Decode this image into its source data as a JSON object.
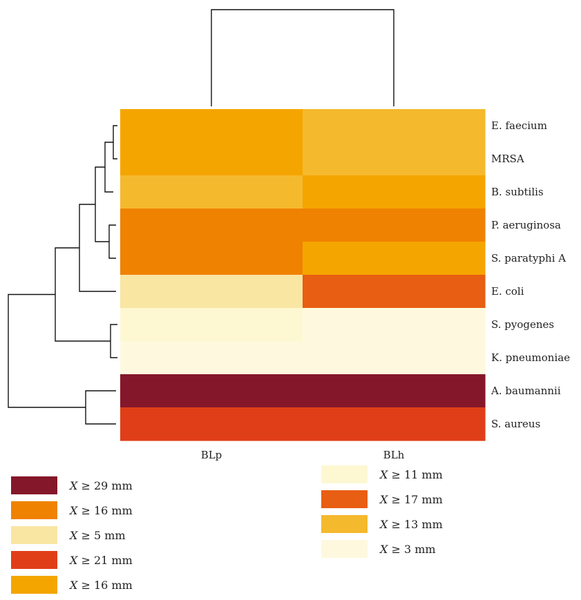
{
  "chart_data": {
    "type": "heatmap",
    "columns": [
      "BLp",
      "BLh"
    ],
    "rows": [
      "E. faecium",
      "MRSA",
      "B. subtilis",
      "P. aeruginosa",
      "S. paratyphi A",
      "E. coli",
      "S. pyogenes",
      "K. pneumoniae",
      "A. baumannii",
      "S. aureus"
    ],
    "values": [
      [
        16,
        13
      ],
      [
        16,
        13
      ],
      [
        13,
        16
      ],
      [
        16,
        16
      ],
      [
        16,
        16
      ],
      [
        5,
        17
      ],
      [
        11,
        3
      ],
      [
        3,
        3
      ],
      [
        29,
        29
      ],
      [
        21,
        21
      ]
    ],
    "cell_colors": [
      [
        "#F5A500",
        "#F5B92E"
      ],
      [
        "#F5A500",
        "#F5B92E"
      ],
      [
        "#F5B92E",
        "#F5A500"
      ],
      [
        "#EF8200",
        "#EF8200"
      ],
      [
        "#EF8200",
        "#F5A500"
      ],
      [
        "#F9E6A3",
        "#E85E12"
      ],
      [
        "#FDF8D2",
        "#FEF9DE"
      ],
      [
        "#FEF9DE",
        "#FEF9DE"
      ],
      [
        "#85172A",
        "#85172A"
      ],
      [
        "#E03E18",
        "#E03E18"
      ]
    ],
    "legend": [
      {
        "variable": "X",
        "text": " ≥ 29 mm",
        "color": "#85172A"
      },
      {
        "variable": "X",
        "text": " ≥ 16 mm",
        "color": "#EF8200"
      },
      {
        "variable": "X",
        "text": " ≥ 5 mm",
        "color": "#F9E6A3"
      },
      {
        "variable": "X",
        "text": " ≥ 21 mm",
        "color": "#E03E18"
      },
      {
        "variable": "X",
        "text": " ≥ 16 mm",
        "color": "#F5A500"
      },
      {
        "variable": "X",
        "text": " ≥ 11 mm",
        "color": "#FDF8D2"
      },
      {
        "variable": "X",
        "text": " ≥ 17 mm",
        "color": "#E85E12"
      },
      {
        "variable": "X",
        "text": " ≥ 13 mm",
        "color": "#F5B92E"
      },
      {
        "variable": "X",
        "text": " ≥ 3 mm",
        "color": "#FEF9DE"
      }
    ],
    "column_dendrogram": true,
    "row_dendrogram": true
  }
}
